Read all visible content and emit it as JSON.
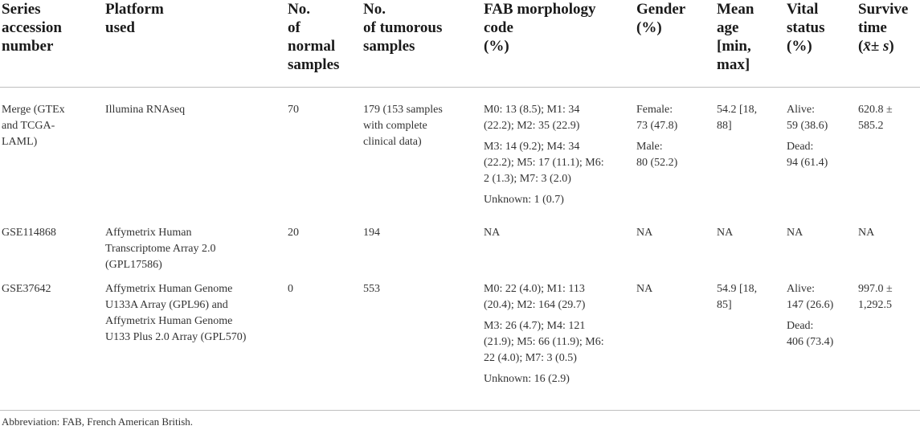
{
  "headers": {
    "series": [
      "Series",
      "accession",
      "number"
    ],
    "platform": [
      "Platform",
      "used"
    ],
    "normal": [
      "No.",
      "of",
      "normal",
      "samples"
    ],
    "tumor": [
      "No.",
      "of tumorous",
      "samples"
    ],
    "fab": [
      "FAB morphology",
      "code",
      "(%)"
    ],
    "gender": [
      "Gender",
      "(%)"
    ],
    "age": [
      "Mean",
      "age",
      "[min,",
      "max]"
    ],
    "vital": [
      "Vital",
      "status",
      "(%)"
    ],
    "survive": [
      "Survive",
      "time",
      "(x̄± s)"
    ]
  },
  "rows": [
    {
      "series": [
        "Merge (GTEx",
        "and TCGA-",
        "LAML)"
      ],
      "platform": [
        "Illumina RNAseq"
      ],
      "normal": "70",
      "tumor": [
        "179 (153 samples",
        "with complete",
        "clinical data)"
      ],
      "fab": [
        [
          "M0: 13 (8.5); M1: 34",
          "(22.2); M2: 35 (22.9)"
        ],
        [
          "M3: 14 (9.2); M4: 34",
          "(22.2); M5: 17 (11.1); M6:",
          "2 (1.3); M7: 3 (2.0)"
        ],
        [
          "Unknown: 1 (0.7)"
        ]
      ],
      "gender": [
        [
          "Female:",
          "73 (47.8)"
        ],
        [
          "Male:",
          "80 (52.2)"
        ]
      ],
      "age": [
        "54.2 [18,",
        "88]"
      ],
      "vital": [
        [
          "Alive:",
          "59 (38.6)"
        ],
        [
          "Dead:",
          "94 (61.4)"
        ]
      ],
      "survive": [
        "620.8 ±",
        "585.2"
      ]
    },
    {
      "series": [
        "GSE114868"
      ],
      "platform": [
        "Affymetrix Human",
        "Transcriptome Array 2.0",
        "(GPL17586)"
      ],
      "normal": "20",
      "tumor": [
        "194"
      ],
      "fab": [
        [
          "NA"
        ]
      ],
      "gender": [
        [
          "NA"
        ]
      ],
      "age": [
        "NA"
      ],
      "vital": [
        [
          "NA"
        ]
      ],
      "survive": [
        "NA"
      ]
    },
    {
      "series": [
        "GSE37642"
      ],
      "platform": [
        "Affymetrix Human Genome",
        "U133A Array (GPL96) and",
        "Affymetrix Human Genome",
        "U133 Plus 2.0 Array (GPL570)"
      ],
      "normal": "0",
      "tumor": [
        "553"
      ],
      "fab": [
        [
          "M0: 22 (4.0); M1: 113",
          "(20.4); M2: 164 (29.7)"
        ],
        [
          "M3: 26 (4.7); M4: 121",
          "(21.9); M5: 66 (11.9); M6:",
          "22 (4.0); M7: 3 (0.5)"
        ],
        [
          "Unknown: 16 (2.9)"
        ]
      ],
      "gender": [
        [
          "NA"
        ]
      ],
      "age": [
        "54.9 [18,",
        "85]"
      ],
      "vital": [
        [
          "Alive:",
          "147 (26.6)"
        ],
        [
          "Dead:",
          "406 (73.4)"
        ]
      ],
      "survive": [
        "997.0 ±",
        "1,292.5"
      ]
    }
  ],
  "footnote": "Abbreviation: FAB, French American British."
}
